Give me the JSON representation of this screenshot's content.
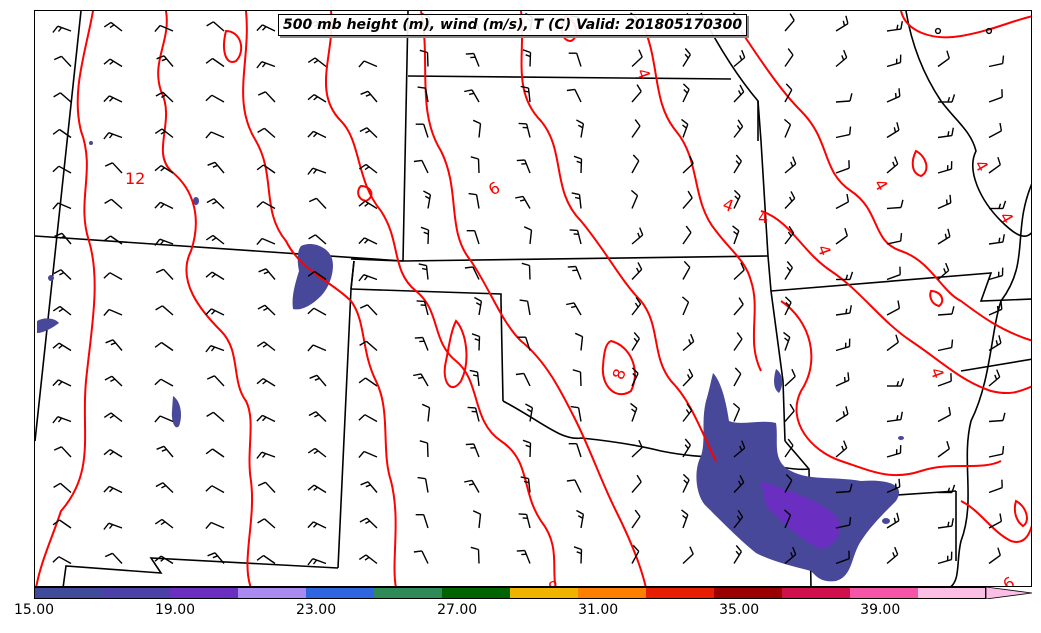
{
  "title": "500 mb height (m), wind (m/s), T (C) Valid: 201805170300",
  "colorbar": {
    "min": 15,
    "max": 42,
    "step": 2,
    "tick_labels": [
      "15.00",
      "19.00",
      "23.00",
      "27.00",
      "31.00",
      "35.00",
      "39.00"
    ],
    "colors": [
      "#3f4a9a",
      "#4b3fa8",
      "#6a2fc0",
      "#a98af0",
      "#2f66e0",
      "#2e8b57",
      "#006400",
      "#f0b400",
      "#ff7f00",
      "#e81e00",
      "#9b0000",
      "#d0104c",
      "#f455a6",
      "#fbbfe6"
    ],
    "extend": "max"
  },
  "contour_labels": [
    "12",
    "6",
    "4",
    "4",
    "4",
    "4",
    "8",
    "4",
    "4",
    "6",
    "8"
  ],
  "colors": {
    "temperature_contour": "#ff0000",
    "state_border": "#000000",
    "wind_barb": "#000000",
    "precip_fill": "#48489a"
  },
  "icons": {
    "wind_barb": "wind-barb-icon",
    "calm_wind": "calm-circle-icon"
  }
}
